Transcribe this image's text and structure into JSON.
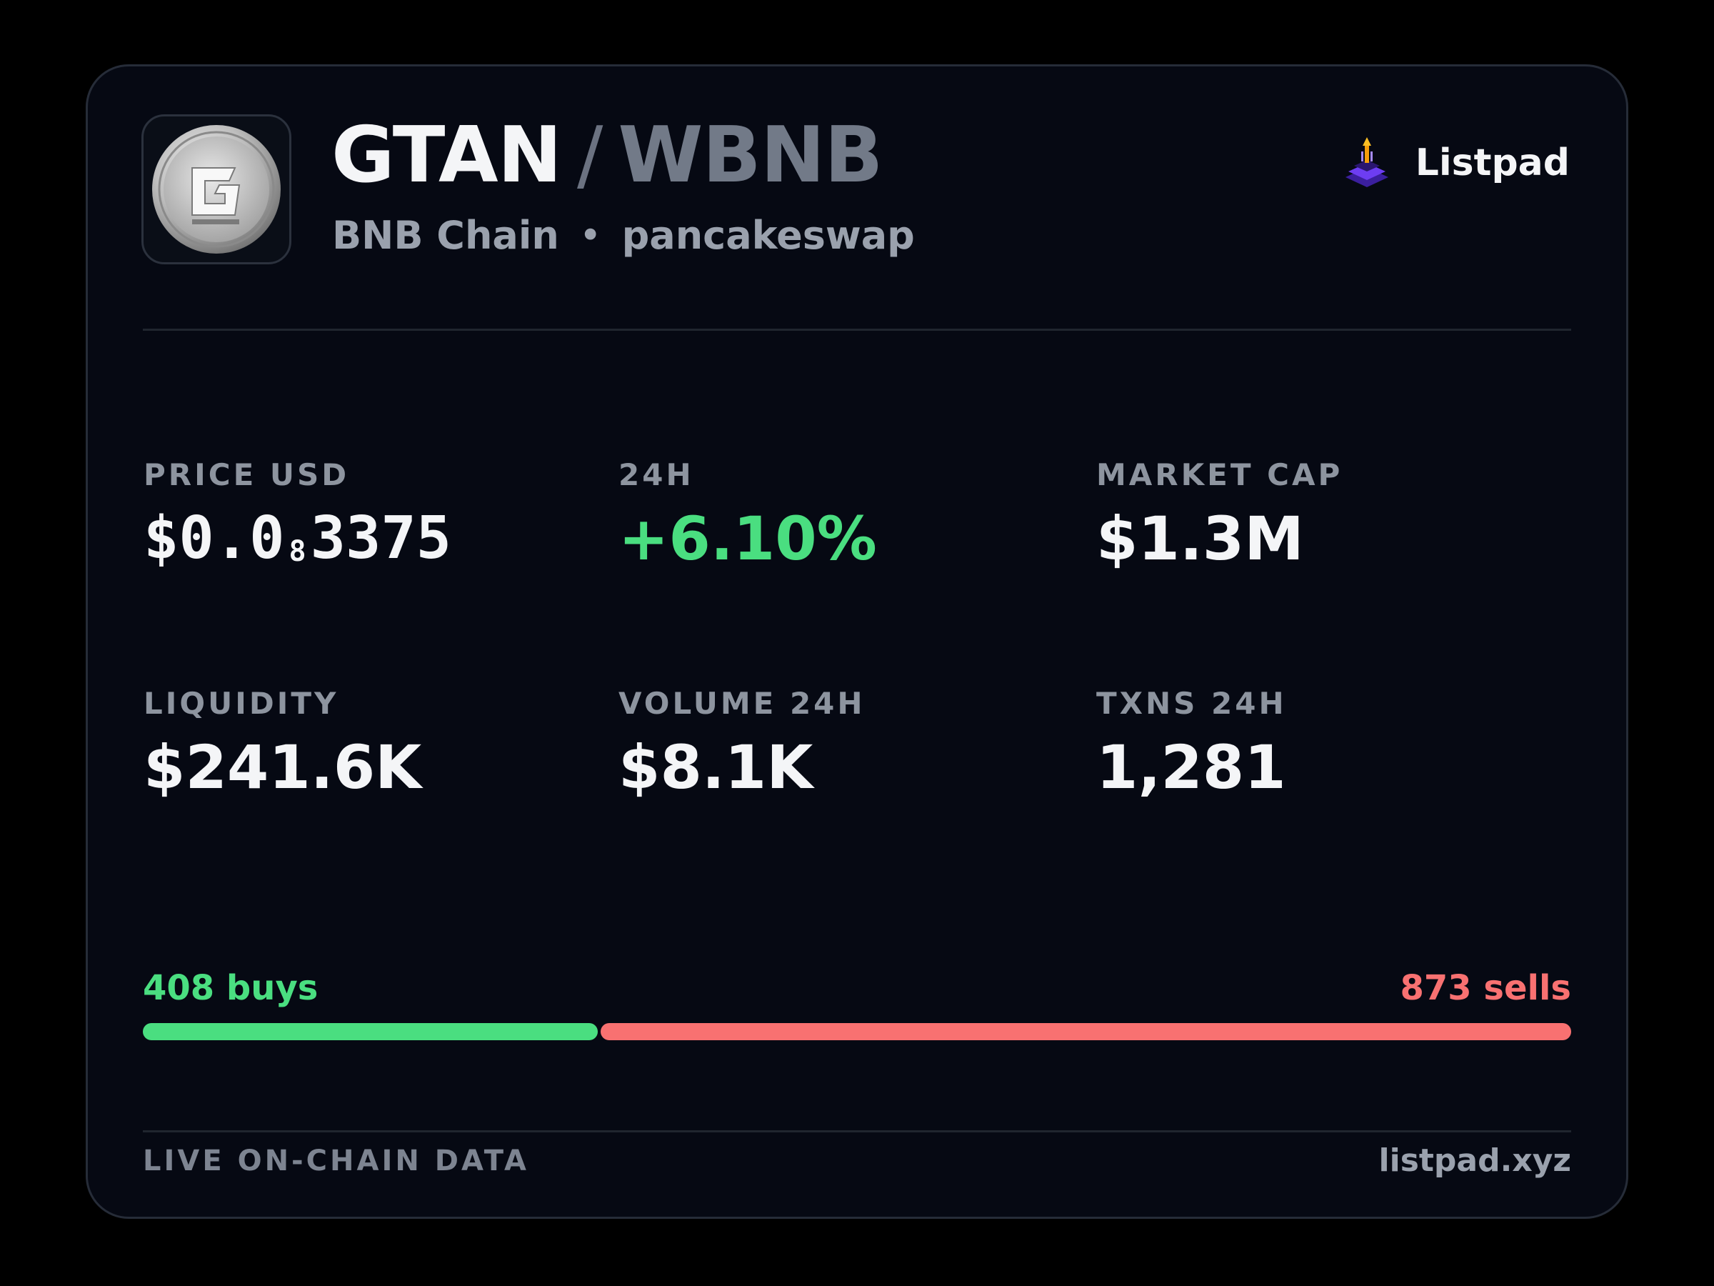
{
  "token": {
    "base_symbol": "GTAN",
    "separator": "/",
    "quote_symbol": "WBNB",
    "chain": "BNB Chain",
    "dot": "•",
    "dex": "pancakeswap",
    "logo_icon": "silver-coin-logo-icon"
  },
  "brand": {
    "name": "Listpad",
    "icon": "listpad-rocket-icon"
  },
  "stats": {
    "price": {
      "label": "PRICE USD",
      "prefix": "$0.0",
      "zeros": "8",
      "digits": "3375"
    },
    "change_24h": {
      "label": "24H",
      "value": "+6.10%"
    },
    "market_cap": {
      "label": "MARKET CAP",
      "value": "$1.3M"
    },
    "liquidity": {
      "label": "LIQUIDITY",
      "value": "$241.6K"
    },
    "volume_24h": {
      "label": "VOLUME 24H",
      "value": "$8.1K"
    },
    "txns_24h": {
      "label": "TXNS 24H",
      "value": "1,281"
    }
  },
  "trades": {
    "buys_label": "408 buys",
    "sells_label": "873 sells",
    "buys": 408,
    "sells": 873
  },
  "footer": {
    "left": "LIVE ON-CHAIN DATA",
    "right": "listpad.xyz"
  },
  "colors": {
    "positive": "#4ade80",
    "negative": "#f87171",
    "card_bg": "#060913"
  }
}
